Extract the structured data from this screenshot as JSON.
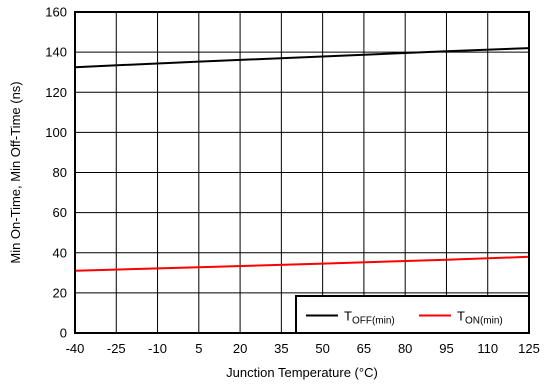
{
  "chart_data": {
    "type": "line",
    "xlabel": "Junction Temperature (°C)",
    "ylabel": "Min On-Time, Min Off-Time (ns)",
    "x_ticks": [
      "-40",
      "-25",
      "-10",
      "5",
      "20",
      "35",
      "50",
      "65",
      "80",
      "95",
      "110",
      "125"
    ],
    "xlim": [
      -40,
      125
    ],
    "ylim": [
      0,
      160
    ],
    "y_ticks": [
      "0",
      "20",
      "40",
      "60",
      "80",
      "100",
      "120",
      "140",
      "160"
    ],
    "grid": true,
    "legend_position": "bottom-right",
    "series": [
      {
        "name_main": "T",
        "name_sub": "OFF(min)",
        "color": "#000000",
        "x": [
          -40,
          5,
          50,
          95,
          125
        ],
        "y": [
          132.5,
          135.3,
          137.8,
          140.4,
          142
        ]
      },
      {
        "name_main": "T",
        "name_sub": "ON(min)",
        "color": "#ff0000",
        "x": [
          -40,
          5,
          50,
          95,
          125
        ],
        "y": [
          31,
          32.8,
          34.6,
          36.5,
          38
        ]
      }
    ]
  }
}
